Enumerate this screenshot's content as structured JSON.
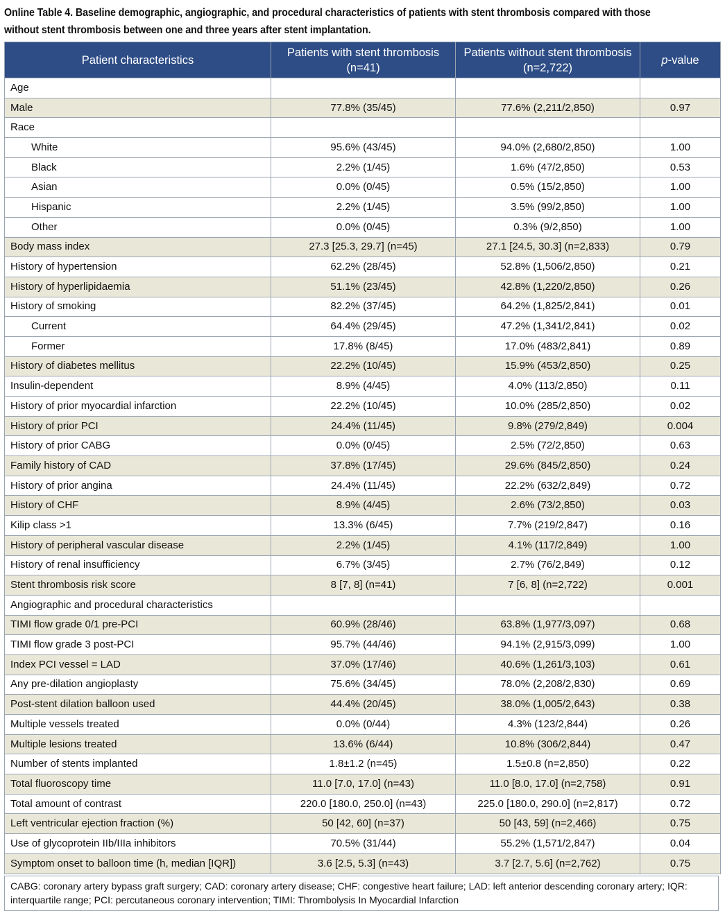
{
  "title": "Online Table 4. Baseline demographic, angiographic, and procedural characteristics of patients with stent thrombosis compared with those without stent thrombosis between one and three years after stent implantation.",
  "headers": {
    "col1": "Patient characteristics",
    "col2": "Patients with stent thrombosis (n=41)",
    "col3": "Patients without stent thrombosis (n=2,722)",
    "col4_italic": "p",
    "col4_rest": "-value"
  },
  "rows": [
    {
      "label": "Age",
      "indent": false,
      "shade": false,
      "st": "",
      "nost": "",
      "p": ""
    },
    {
      "label": "Male",
      "indent": false,
      "shade": true,
      "st": "77.8% (35/45)",
      "nost": "77.6% (2,211/2,850)",
      "p": "0.97"
    },
    {
      "label": "Race",
      "indent": false,
      "shade": false,
      "st": "",
      "nost": "",
      "p": ""
    },
    {
      "label": "White",
      "indent": true,
      "shade": false,
      "st": "95.6% (43/45)",
      "nost": "94.0% (2,680/2,850)",
      "p": "1.00"
    },
    {
      "label": "Black",
      "indent": true,
      "shade": false,
      "st": "2.2% (1/45)",
      "nost": "1.6% (47/2,850)",
      "p": "0.53"
    },
    {
      "label": "Asian",
      "indent": true,
      "shade": false,
      "st": "0.0% (0/45)",
      "nost": "0.5% (15/2,850)",
      "p": "1.00"
    },
    {
      "label": "Hispanic",
      "indent": true,
      "shade": false,
      "st": "2.2% (1/45)",
      "nost": "3.5% (99/2,850)",
      "p": "1.00"
    },
    {
      "label": "Other",
      "indent": true,
      "shade": false,
      "st": "0.0% (0/45)",
      "nost": "0.3% (9/2,850)",
      "p": "1.00"
    },
    {
      "label": "Body mass index",
      "indent": false,
      "shade": true,
      "st": "27.3 [25.3, 29.7] (n=45)",
      "nost": "27.1 [24.5, 30.3] (n=2,833)",
      "p": "0.79"
    },
    {
      "label": "History of hypertension",
      "indent": false,
      "shade": false,
      "st": "62.2% (28/45)",
      "nost": "52.8% (1,506/2,850)",
      "p": "0.21"
    },
    {
      "label": "History of hyperlipidaemia",
      "indent": false,
      "shade": true,
      "st": "51.1% (23/45)",
      "nost": "42.8% (1,220/2,850)",
      "p": "0.26"
    },
    {
      "label": "History of smoking",
      "indent": false,
      "shade": false,
      "st": "82.2% (37/45)",
      "nost": "64.2% (1,825/2,841)",
      "p": "0.01"
    },
    {
      "label": "Current",
      "indent": true,
      "shade": false,
      "st": "64.4% (29/45)",
      "nost": "47.2% (1,341/2,841)",
      "p": "0.02"
    },
    {
      "label": "Former",
      "indent": true,
      "shade": false,
      "st": "17.8% (8/45)",
      "nost": "17.0% (483/2,841)",
      "p": "0.89"
    },
    {
      "label": "History of diabetes mellitus",
      "indent": false,
      "shade": true,
      "st": "22.2% (10/45)",
      "nost": "15.9% (453/2,850)",
      "p": "0.25"
    },
    {
      "label": "Insulin-dependent",
      "indent": false,
      "shade": false,
      "st": "8.9% (4/45)",
      "nost": "4.0% (113/2,850)",
      "p": "0.11"
    },
    {
      "label": "History of prior myocardial infarction",
      "indent": false,
      "shade": false,
      "st": "22.2% (10/45)",
      "nost": "10.0% (285/2,850)",
      "p": "0.02"
    },
    {
      "label": "History of prior PCI",
      "indent": false,
      "shade": true,
      "st": "24.4% (11/45)",
      "nost": "9.8% (279/2,849)",
      "p": "0.004"
    },
    {
      "label": "History of prior CABG",
      "indent": false,
      "shade": false,
      "st": "0.0% (0/45)",
      "nost": "2.5% (72/2,850)",
      "p": "0.63"
    },
    {
      "label": "Family history of CAD",
      "indent": false,
      "shade": true,
      "st": "37.8% (17/45)",
      "nost": "29.6% (845/2,850)",
      "p": "0.24"
    },
    {
      "label": "History of prior angina",
      "indent": false,
      "shade": false,
      "st": "24.4% (11/45)",
      "nost": "22.2% (632/2,849)",
      "p": "0.72"
    },
    {
      "label": "History of CHF",
      "indent": false,
      "shade": true,
      "st": "8.9% (4/45)",
      "nost": "2.6% (73/2,850)",
      "p": "0.03"
    },
    {
      "label": "Kilip class >1",
      "indent": false,
      "shade": false,
      "st": "13.3% (6/45)",
      "nost": "7.7% (219/2,847)",
      "p": "0.16"
    },
    {
      "label": "History of peripheral vascular disease",
      "indent": false,
      "shade": true,
      "st": "2.2% (1/45)",
      "nost": "4.1% (117/2,849)",
      "p": "1.00"
    },
    {
      "label": "History of renal insufficiency",
      "indent": false,
      "shade": false,
      "st": "6.7% (3/45)",
      "nost": "2.7% (76/2,849)",
      "p": "0.12"
    },
    {
      "label": "Stent thrombosis risk score",
      "indent": false,
      "shade": true,
      "st": "8 [7, 8] (n=41)",
      "nost": "7 [6, 8] (n=2,722)",
      "p": "0.001"
    },
    {
      "label": "Angiographic and procedural characteristics",
      "indent": false,
      "shade": false,
      "st": "",
      "nost": "",
      "p": ""
    },
    {
      "label": "TIMI flow grade 0/1 pre-PCI",
      "indent": false,
      "shade": true,
      "st": "60.9% (28/46)",
      "nost": "63.8% (1,977/3,097)",
      "p": "0.68"
    },
    {
      "label": "TIMI flow grade 3 post-PCI",
      "indent": false,
      "shade": false,
      "st": "95.7% (44/46)",
      "nost": "94.1% (2,915/3,099)",
      "p": "1.00"
    },
    {
      "label": "Index PCI vessel = LAD",
      "indent": false,
      "shade": true,
      "st": "37.0% (17/46)",
      "nost": "40.6% (1,261/3,103)",
      "p": "0.61"
    },
    {
      "label": "Any pre-dilation angioplasty",
      "indent": false,
      "shade": false,
      "st": "75.6% (34/45)",
      "nost": "78.0% (2,208/2,830)",
      "p": "0.69"
    },
    {
      "label": "Post-stent dilation balloon used",
      "indent": false,
      "shade": true,
      "st": "44.4% (20/45)",
      "nost": "38.0% (1,005/2,643)",
      "p": "0.38"
    },
    {
      "label": "Multiple vessels treated",
      "indent": false,
      "shade": false,
      "st": "0.0% (0/44)",
      "nost": "4.3% (123/2,844)",
      "p": "0.26"
    },
    {
      "label": "Multiple lesions treated",
      "indent": false,
      "shade": true,
      "st": "13.6% (6/44)",
      "nost": "10.8% (306/2,844)",
      "p": "0.47"
    },
    {
      "label": "Number of stents implanted",
      "indent": false,
      "shade": false,
      "st": "1.8±1.2 (n=45)",
      "nost": "1.5±0.8 (n=2,850)",
      "p": "0.22"
    },
    {
      "label": "Total fluoroscopy time",
      "indent": false,
      "shade": true,
      "st": "11.0 [7.0, 17.0] (n=43)",
      "nost": "11.0 [8.0, 17.0] (n=2,758)",
      "p": "0.91"
    },
    {
      "label": "Total amount of contrast",
      "indent": false,
      "shade": false,
      "st": "220.0 [180.0, 250.0] (n=43)",
      "nost": "225.0 [180.0, 290.0] (n=2,817)",
      "p": "0.72"
    },
    {
      "label": "Left ventricular ejection fraction (%)",
      "indent": false,
      "shade": true,
      "st": "50 [42, 60] (n=37)",
      "nost": "50 [43, 59] (n=2,466)",
      "p": "0.75"
    },
    {
      "label": "Use of glycoprotein IIb/IIIa inhibitors",
      "indent": false,
      "shade": false,
      "st": "70.5% (31/44)",
      "nost": "55.2% (1,571/2,847)",
      "p": "0.04"
    },
    {
      "label": "Symptom onset to balloon time (h, median [IQR])",
      "indent": false,
      "shade": true,
      "st": "3.6 [2.5, 5.3] (n=43)",
      "nost": "3.7 [2.7, 5.6] (n=2,762)",
      "p": "0.75"
    }
  ],
  "footnote": "CABG: coronary artery bypass graft surgery; CAD: coronary artery disease; CHF: congestive heart failure; LAD: left anterior descending coronary artery; IQR: interquartile range; PCI: percutaneous coronary intervention; TIMI: Thrombolysis In Myocardial Infarction"
}
